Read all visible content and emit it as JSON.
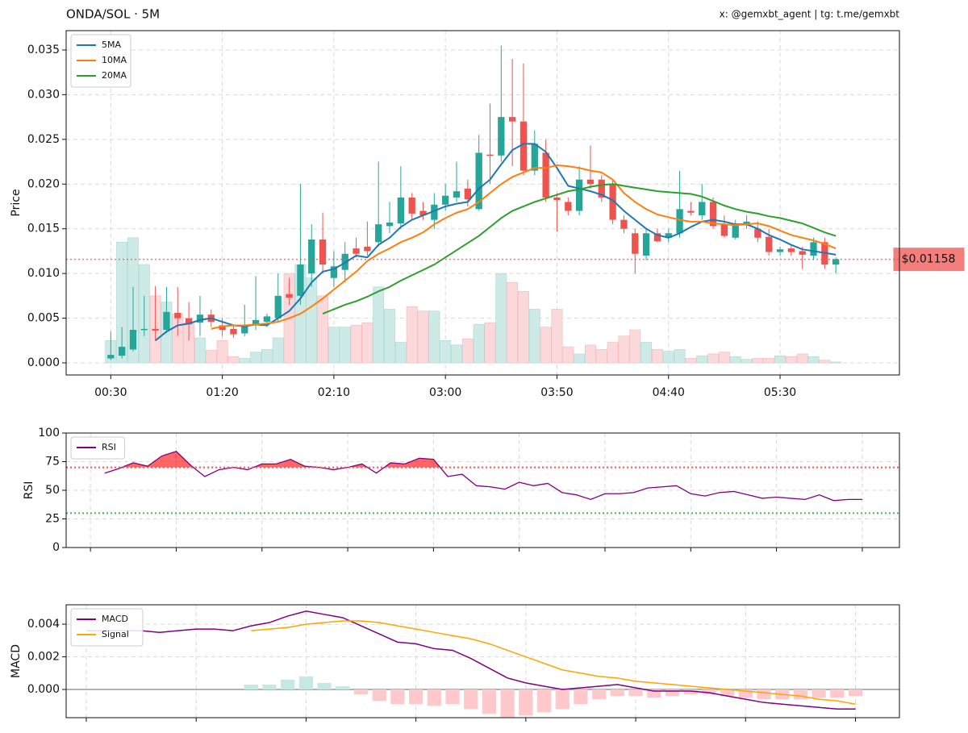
{
  "chart_data": [
    {
      "type": "candlestick",
      "title": "ONDA/SOL · 5M",
      "subtitle": "x: @gemxbt_agent | tg: t.me/gemxbt",
      "ylabel": "Price",
      "categories": [
        "00:30",
        null,
        null,
        null,
        null,
        null,
        null,
        null,
        null,
        null,
        "01:20",
        null,
        null,
        null,
        null,
        null,
        null,
        null,
        null,
        null,
        "02:10",
        null,
        null,
        null,
        null,
        null,
        null,
        null,
        null,
        null,
        "03:00",
        null,
        null,
        null,
        null,
        null,
        null,
        null,
        null,
        null,
        "03:50",
        null,
        null,
        null,
        null,
        null,
        null,
        null,
        null,
        null,
        "04:40",
        null,
        null,
        null,
        null,
        null,
        null,
        null,
        null,
        null,
        "05:30",
        null,
        null,
        null,
        null,
        null
      ],
      "open": [
        0.0005,
        0.0008,
        0.0015,
        0.0037,
        0.0038,
        0.0037,
        0.0056,
        0.005,
        0.0045,
        0.0054,
        0.0042,
        0.0038,
        0.0033,
        0.0042,
        0.0046,
        0.005,
        0.0077,
        0.0075,
        0.01,
        0.0138,
        0.0095,
        0.0104,
        0.0128,
        0.013,
        0.0135,
        0.0153,
        0.0156,
        0.0185,
        0.017,
        0.016,
        0.0177,
        0.0185,
        0.0195,
        0.0172,
        0.0233,
        0.0232,
        0.0275,
        0.027,
        0.0215,
        0.0235,
        0.0185,
        0.018,
        0.017,
        0.0205,
        0.0205,
        0.02,
        0.016,
        0.0145,
        0.012,
        0.0145,
        0.014,
        0.0145,
        0.017,
        0.0165,
        0.018,
        0.0155,
        0.014,
        0.0155,
        0.015,
        0.0141,
        0.0124,
        0.0128,
        0.0125,
        0.012,
        0.0135,
        0.011
      ],
      "high": [
        0.0035,
        0.004,
        0.0085,
        0.0075,
        0.0086,
        0.0085,
        0.0085,
        0.0068,
        0.0075,
        0.006,
        0.005,
        0.0043,
        0.0065,
        0.0097,
        0.0055,
        0.01,
        0.0095,
        0.02,
        0.0155,
        0.0168,
        0.0125,
        0.0135,
        0.014,
        0.0158,
        0.0225,
        0.018,
        0.022,
        0.019,
        0.018,
        0.019,
        0.02,
        0.0225,
        0.0205,
        0.0255,
        0.029,
        0.0355,
        0.034,
        0.0335,
        0.026,
        0.025,
        0.019,
        0.0185,
        0.022,
        0.0243,
        0.021,
        0.0205,
        0.0165,
        0.015,
        0.015,
        0.015,
        0.015,
        0.0215,
        0.018,
        0.02,
        0.0185,
        0.0165,
        0.016,
        0.0165,
        0.0158,
        0.015,
        0.013,
        0.0132,
        0.013,
        0.014,
        0.014,
        0.0118
      ],
      "low": [
        0.0003,
        0.0005,
        0.0013,
        0.003,
        0.0025,
        0.0033,
        0.003,
        0.0025,
        0.003,
        0.004,
        0.003,
        0.0028,
        0.003,
        0.0037,
        0.004,
        0.0045,
        0.0065,
        0.0065,
        0.0085,
        0.01,
        0.0085,
        0.009,
        0.0118,
        0.012,
        0.013,
        0.0145,
        0.015,
        0.016,
        0.016,
        0.015,
        0.017,
        0.018,
        0.0175,
        0.017,
        0.02,
        0.0225,
        0.022,
        0.021,
        0.021,
        0.018,
        0.0147,
        0.0165,
        0.0165,
        0.0195,
        0.018,
        0.0155,
        0.0145,
        0.01,
        0.0115,
        0.0135,
        0.0135,
        0.014,
        0.0165,
        0.016,
        0.015,
        0.014,
        0.0138,
        0.015,
        0.0135,
        0.012,
        0.012,
        0.012,
        0.0105,
        0.0115,
        0.0105,
        0.01
      ],
      "close": [
        0.0009,
        0.0018,
        0.0037,
        0.0038,
        0.0036,
        0.0057,
        0.005,
        0.0043,
        0.0054,
        0.0046,
        0.0037,
        0.0032,
        0.0042,
        0.0048,
        0.0052,
        0.0075,
        0.0073,
        0.011,
        0.0138,
        0.011,
        0.0108,
        0.0122,
        0.0122,
        0.0125,
        0.0155,
        0.0157,
        0.0185,
        0.0167,
        0.0165,
        0.0177,
        0.0187,
        0.0192,
        0.0183,
        0.0235,
        0.0232,
        0.0275,
        0.027,
        0.0215,
        0.0245,
        0.0185,
        0.0182,
        0.017,
        0.0205,
        0.02,
        0.0185,
        0.016,
        0.015,
        0.0122,
        0.0145,
        0.0136,
        0.0145,
        0.0172,
        0.0168,
        0.018,
        0.0153,
        0.0142,
        0.0155,
        0.0158,
        0.014,
        0.0124,
        0.0127,
        0.0124,
        0.0121,
        0.0135,
        0.011,
        0.0116
      ],
      "up_color": "#26a69a",
      "down_color": "#ef5350",
      "volume": {
        "up_color": "#cdeae7",
        "down_color": "#fbd9db",
        "values": [
          0.0025,
          0.0135,
          0.014,
          0.011,
          0.0075,
          0.0068,
          0.0055,
          0.0045,
          0.0028,
          0.0014,
          0.0025,
          0.0007,
          0.0005,
          0.0012,
          0.0015,
          0.0028,
          0.01,
          0.011,
          0.0095,
          0.0075,
          0.004,
          0.004,
          0.0042,
          0.0045,
          0.0085,
          0.006,
          0.0023,
          0.0063,
          0.0058,
          0.0058,
          0.0025,
          0.002,
          0.0027,
          0.0043,
          0.0045,
          0.01,
          0.009,
          0.008,
          0.006,
          0.004,
          0.006,
          0.0018,
          0.001,
          0.002,
          0.0015,
          0.0023,
          0.003,
          0.0037,
          0.0023,
          0.0015,
          0.0013,
          0.0015,
          0.0005,
          0.0008,
          0.001,
          0.0012,
          0.0007,
          0.0004,
          0.0005,
          0.0005,
          0.0008,
          0.0007,
          0.001,
          0.0007,
          0.0003,
          0.0001
        ]
      },
      "series": [
        {
          "name": "5MA",
          "color": "#1f77b4",
          "values": [
            null,
            null,
            null,
            null,
            0.0025,
            0.0035,
            0.0042,
            0.0044,
            0.0048,
            0.005,
            0.0046,
            0.0042,
            0.0041,
            0.0043,
            0.0042,
            0.005,
            0.0058,
            0.0072,
            0.009,
            0.0102,
            0.0105,
            0.0112,
            0.012,
            0.0118,
            0.0132,
            0.014,
            0.0152,
            0.016,
            0.0165,
            0.017,
            0.0175,
            0.0178,
            0.018,
            0.0195,
            0.0205,
            0.0222,
            0.0238,
            0.0245,
            0.0245,
            0.0236,
            0.0218,
            0.0198,
            0.0195,
            0.0192,
            0.0188,
            0.0182,
            0.017,
            0.016,
            0.015,
            0.0143,
            0.014,
            0.0145,
            0.0152,
            0.0158,
            0.016,
            0.0158,
            0.0155,
            0.0155,
            0.015,
            0.0143,
            0.0138,
            0.0132,
            0.0127,
            0.0125,
            0.0123,
            0.0121
          ]
        },
        {
          "name": "10MA",
          "color": "#ff7f0e",
          "values": [
            null,
            null,
            null,
            null,
            null,
            null,
            null,
            null,
            null,
            0.0038,
            0.0041,
            0.0042,
            0.0042,
            0.0043,
            0.0044,
            0.0046,
            0.005,
            0.0055,
            0.0063,
            0.0072,
            0.0082,
            0.0092,
            0.0102,
            0.0114,
            0.0122,
            0.0128,
            0.0135,
            0.014,
            0.0146,
            0.0155,
            0.0162,
            0.0168,
            0.0172,
            0.018,
            0.019,
            0.02,
            0.0208,
            0.0213,
            0.0218,
            0.0218,
            0.0221,
            0.022,
            0.0218,
            0.0215,
            0.0213,
            0.0205,
            0.019,
            0.018,
            0.0172,
            0.0166,
            0.0163,
            0.016,
            0.0158,
            0.0158,
            0.0156,
            0.0155,
            0.0154,
            0.0155,
            0.0156,
            0.0153,
            0.0148,
            0.0143,
            0.014,
            0.0137,
            0.0133,
            0.0128
          ]
        },
        {
          "name": "20MA",
          "color": "#2ca02c",
          "values": [
            null,
            null,
            null,
            null,
            null,
            null,
            null,
            null,
            null,
            null,
            null,
            null,
            null,
            null,
            null,
            null,
            null,
            null,
            null,
            0.0055,
            0.006,
            0.0065,
            0.0069,
            0.0074,
            0.008,
            0.0085,
            0.0092,
            0.0098,
            0.0104,
            0.011,
            0.0118,
            0.0126,
            0.0134,
            0.0142,
            0.0152,
            0.0162,
            0.017,
            0.0175,
            0.018,
            0.0184,
            0.0188,
            0.0192,
            0.0194,
            0.0197,
            0.0199,
            0.02,
            0.0198,
            0.0196,
            0.0194,
            0.0192,
            0.0191,
            0.019,
            0.0189,
            0.0186,
            0.0181,
            0.0176,
            0.0172,
            0.0169,
            0.0167,
            0.0164,
            0.0162,
            0.0159,
            0.0156,
            0.0151,
            0.0146,
            0.0142
          ]
        }
      ],
      "current_price": 0.01158,
      "current_price_label": "$0.01158",
      "current_price_color": "#ef5350",
      "xlim": [
        -4,
        70.7
      ],
      "ylim": [
        -0.00135,
        0.03716
      ],
      "yticks": [
        {
          "value": 0,
          "label": "0.000"
        },
        {
          "value": 0.005,
          "label": "0.005"
        },
        {
          "value": 0.01,
          "label": "0.010"
        },
        {
          "value": 0.015,
          "label": "0.015"
        },
        {
          "value": 0.02,
          "label": "0.020"
        },
        {
          "value": 0.025,
          "label": "0.025"
        },
        {
          "value": 0.03,
          "label": "0.030"
        },
        {
          "value": 0.035,
          "label": "0.035"
        }
      ],
      "grid": true,
      "legend": "upper left"
    },
    {
      "type": "rsi",
      "ylabel": "RSI",
      "series": [
        {
          "name": "RSI",
          "color": "#800080",
          "values": [
            65,
            69,
            74,
            71,
            80,
            84,
            72,
            62,
            68,
            70,
            68,
            73,
            73,
            77,
            71,
            70,
            68,
            70,
            73,
            65,
            74,
            73,
            78,
            77,
            62,
            64,
            54,
            53,
            51,
            57,
            54,
            56,
            48,
            46,
            42,
            47,
            47,
            48,
            52,
            53,
            54,
            47,
            45,
            48,
            49,
            46,
            43,
            44,
            43,
            42,
            46,
            41,
            42,
            42
          ]
        }
      ],
      "overbought": 70,
      "oversold": 30,
      "overbought_color": "#ff5252",
      "oversold_color": "#4caf50",
      "fill_color": "#ff0000",
      "xlim": [
        -2.7,
        55.6
      ],
      "xticks": [
        -1,
        5,
        11,
        17,
        23,
        29,
        35,
        41,
        47,
        53
      ],
      "ylim": [
        0,
        100
      ],
      "yticks": [
        0,
        25,
        50,
        75,
        100
      ],
      "grid": true,
      "legend": "upper left"
    },
    {
      "type": "macd",
      "ylabel": "MACD",
      "series": [
        {
          "name": "MACD",
          "color": "#800080",
          "values": [
            0.0036,
            0.0036,
            0.0036,
            0.0036,
            0.0035,
            0.0036,
            0.0037,
            0.0037,
            0.0036,
            0.0039,
            0.0041,
            0.0045,
            0.0048,
            0.0046,
            0.0044,
            0.0039,
            0.0034,
            0.0029,
            0.0028,
            0.0025,
            0.0024,
            0.0019,
            0.0013,
            0.0007,
            0.0004,
            0.0002,
            0.0,
            0.0001,
            0.0002,
            0.0003,
            0.0001,
            -0.0001,
            -0.0001,
            -0.0001,
            -0.0002,
            -0.0004,
            -0.0006,
            -0.0008,
            -0.0009,
            -0.001,
            -0.0011,
            -0.0012,
            -0.0012
          ]
        },
        {
          "name": "Signal",
          "color": "#ffa500",
          "values": [
            null,
            null,
            null,
            null,
            null,
            null,
            null,
            null,
            null,
            0.0036,
            0.0037,
            0.0038,
            0.004,
            0.0041,
            0.0042,
            0.0042,
            0.0041,
            0.0039,
            0.0037,
            0.0035,
            0.0033,
            0.0031,
            0.0028,
            0.0024,
            0.002,
            0.0016,
            0.0012,
            0.001,
            0.0008,
            0.0007,
            0.0005,
            0.0004,
            0.0003,
            0.0002,
            0.0001,
            0.0,
            -0.0001,
            -0.0002,
            -0.0003,
            -0.0004,
            -0.0006,
            -0.0007,
            -0.0009
          ]
        }
      ],
      "histogram": {
        "up_color": "#c5e8e4",
        "down_color": "#ffc9cc",
        "values": [
          null,
          null,
          null,
          null,
          null,
          null,
          null,
          null,
          null,
          0.0003,
          0.0003,
          0.0006,
          0.0008,
          0.0004,
          0.0002,
          -0.0003,
          -0.0007,
          -0.0009,
          -0.0009,
          -0.001,
          -0.0009,
          -0.0012,
          -0.0015,
          -0.0017,
          -0.0016,
          -0.0014,
          -0.0012,
          -0.0009,
          -0.0006,
          -0.0004,
          -0.0004,
          -0.0005,
          -0.0004,
          -0.0003,
          -0.0003,
          -0.0004,
          -0.0005,
          -0.0006,
          -0.0006,
          -0.0006,
          -0.0005,
          -0.0005,
          -0.0004
        ]
      },
      "xlim": [
        -1.1,
        44.4
      ],
      "xticks": [
        0,
        6,
        12,
        18,
        24,
        30,
        36,
        42
      ],
      "ylim": [
        -0.00173,
        0.00519
      ],
      "yticks": [
        {
          "value": 0,
          "label": "0.000"
        },
        {
          "value": 0.002,
          "label": "0.002"
        },
        {
          "value": 0.004,
          "label": "0.004"
        }
      ],
      "grid": true,
      "legend": "upper left"
    }
  ]
}
